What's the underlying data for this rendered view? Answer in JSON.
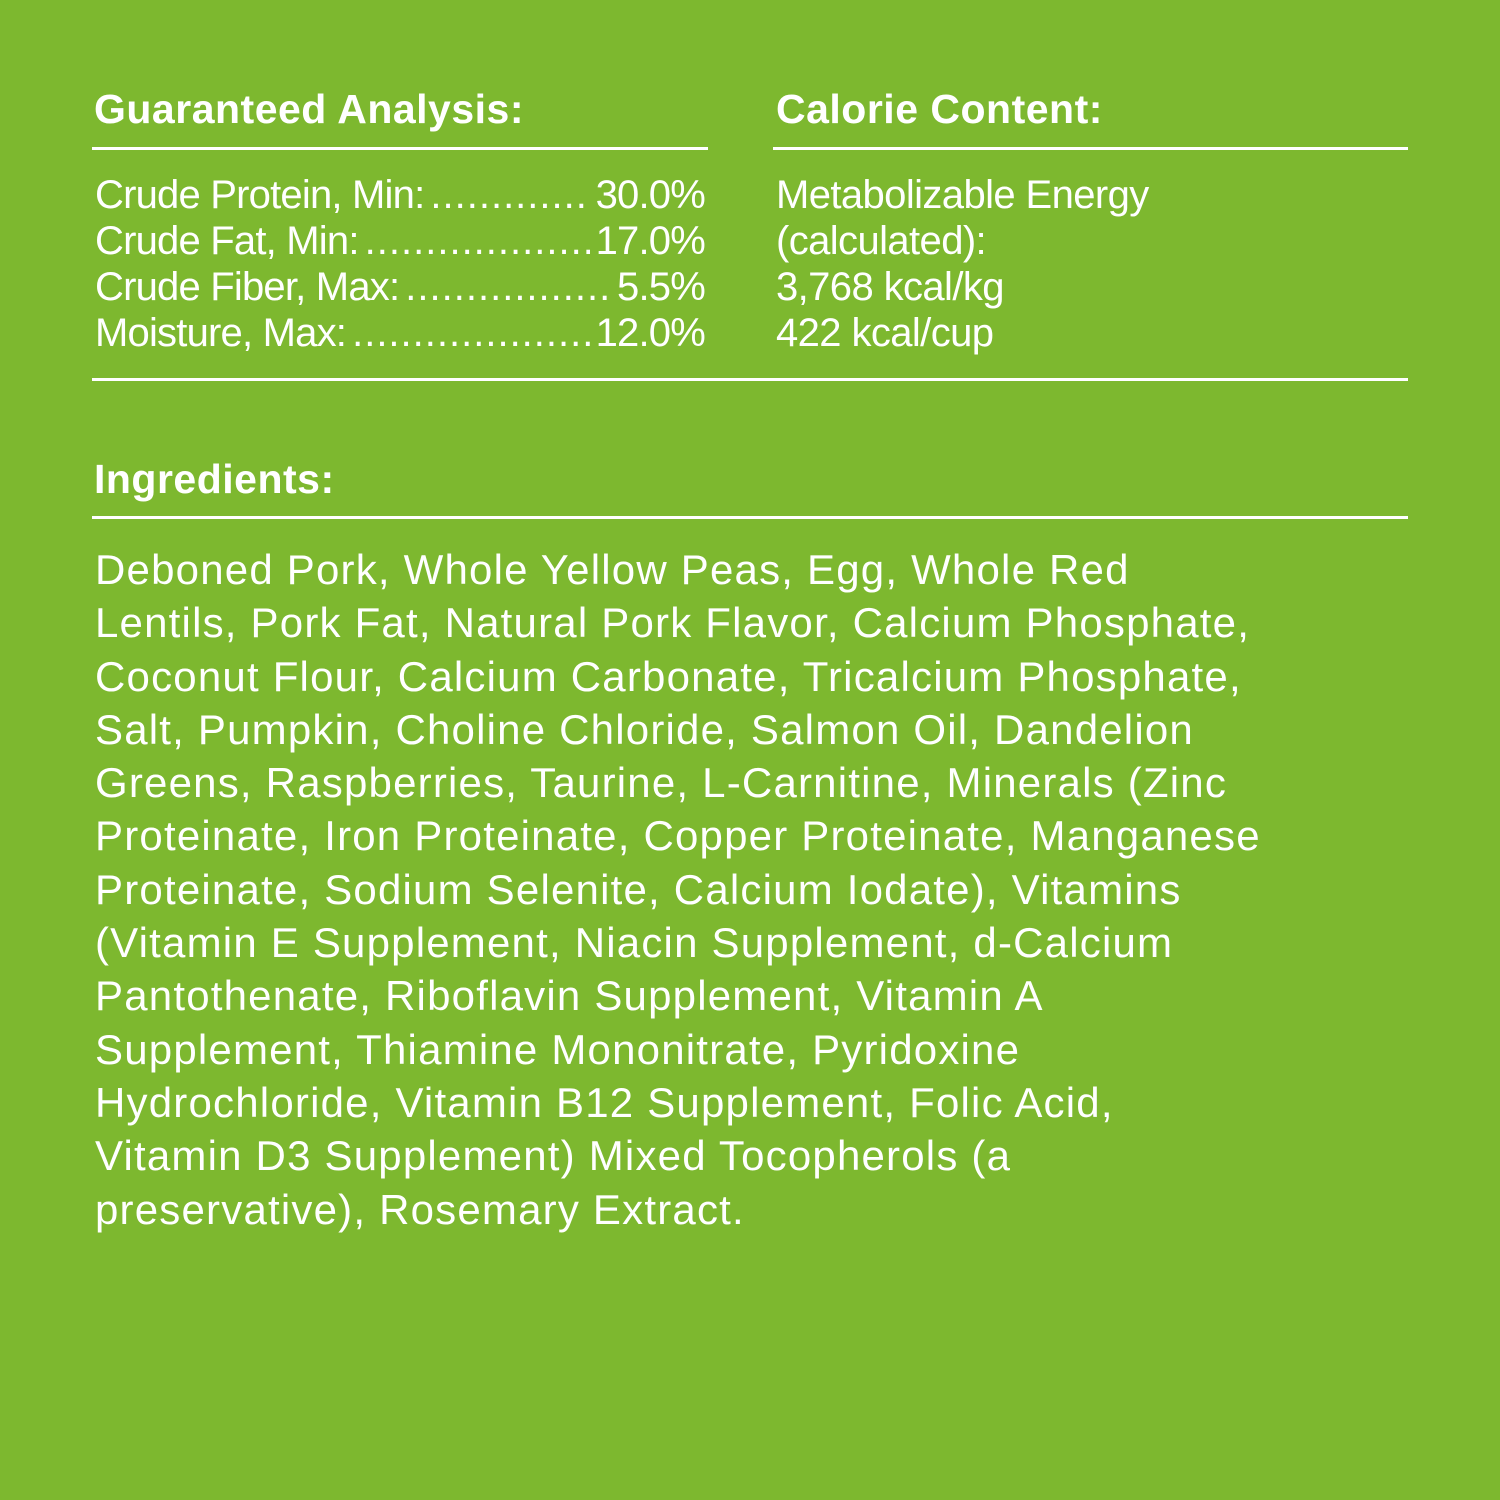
{
  "colors": {
    "background": "#7db82f",
    "text": "#ffffff"
  },
  "guaranteed_analysis": {
    "title": "Guaranteed Analysis:",
    "rows": [
      {
        "label": "Crude Protein, Min:",
        "value": "30.0%"
      },
      {
        "label": "Crude Fat, Min:",
        "value": "17.0%"
      },
      {
        "label": "Crude Fiber, Max:",
        "value": "5.5%"
      },
      {
        "label": "Moisture, Max:",
        "value": "12.0%"
      }
    ]
  },
  "calorie_content": {
    "title": "Calorie Content:",
    "lines": [
      "Metabolizable Energy",
      "(calculated):",
      "3,768 kcal/kg",
      "422 kcal/cup"
    ]
  },
  "ingredients": {
    "title": "Ingredients:",
    "lines": [
      "Deboned Pork, Whole Yellow Peas, Egg, Whole Red",
      "Lentils, Pork Fat, Natural Pork Flavor, Calcium Phosphate,",
      "Coconut Flour, Calcium Carbonate, Tricalcium Phosphate,",
      "Salt, Pumpkin, Choline Chloride, Salmon Oil, Dandelion",
      "Greens, Raspberries, Taurine, L-Carnitine, Minerals (Zinc",
      "Proteinate, Iron Proteinate, Copper Proteinate, Manganese",
      "Proteinate, Sodium Selenite, Calcium Iodate), Vitamins",
      "(Vitamin E Supplement, Niacin Supplement, d-Calcium",
      "Pantothenate, Riboflavin Supplement, Vitamin A",
      "Supplement, Thiamine Mononitrate, Pyridoxine",
      "Hydrochloride, Vitamin B12 Supplement, Folic Acid,",
      "Vitamin D3 Supplement) Mixed Tocopherols (a",
      "preservative), Rosemary Extract."
    ]
  }
}
